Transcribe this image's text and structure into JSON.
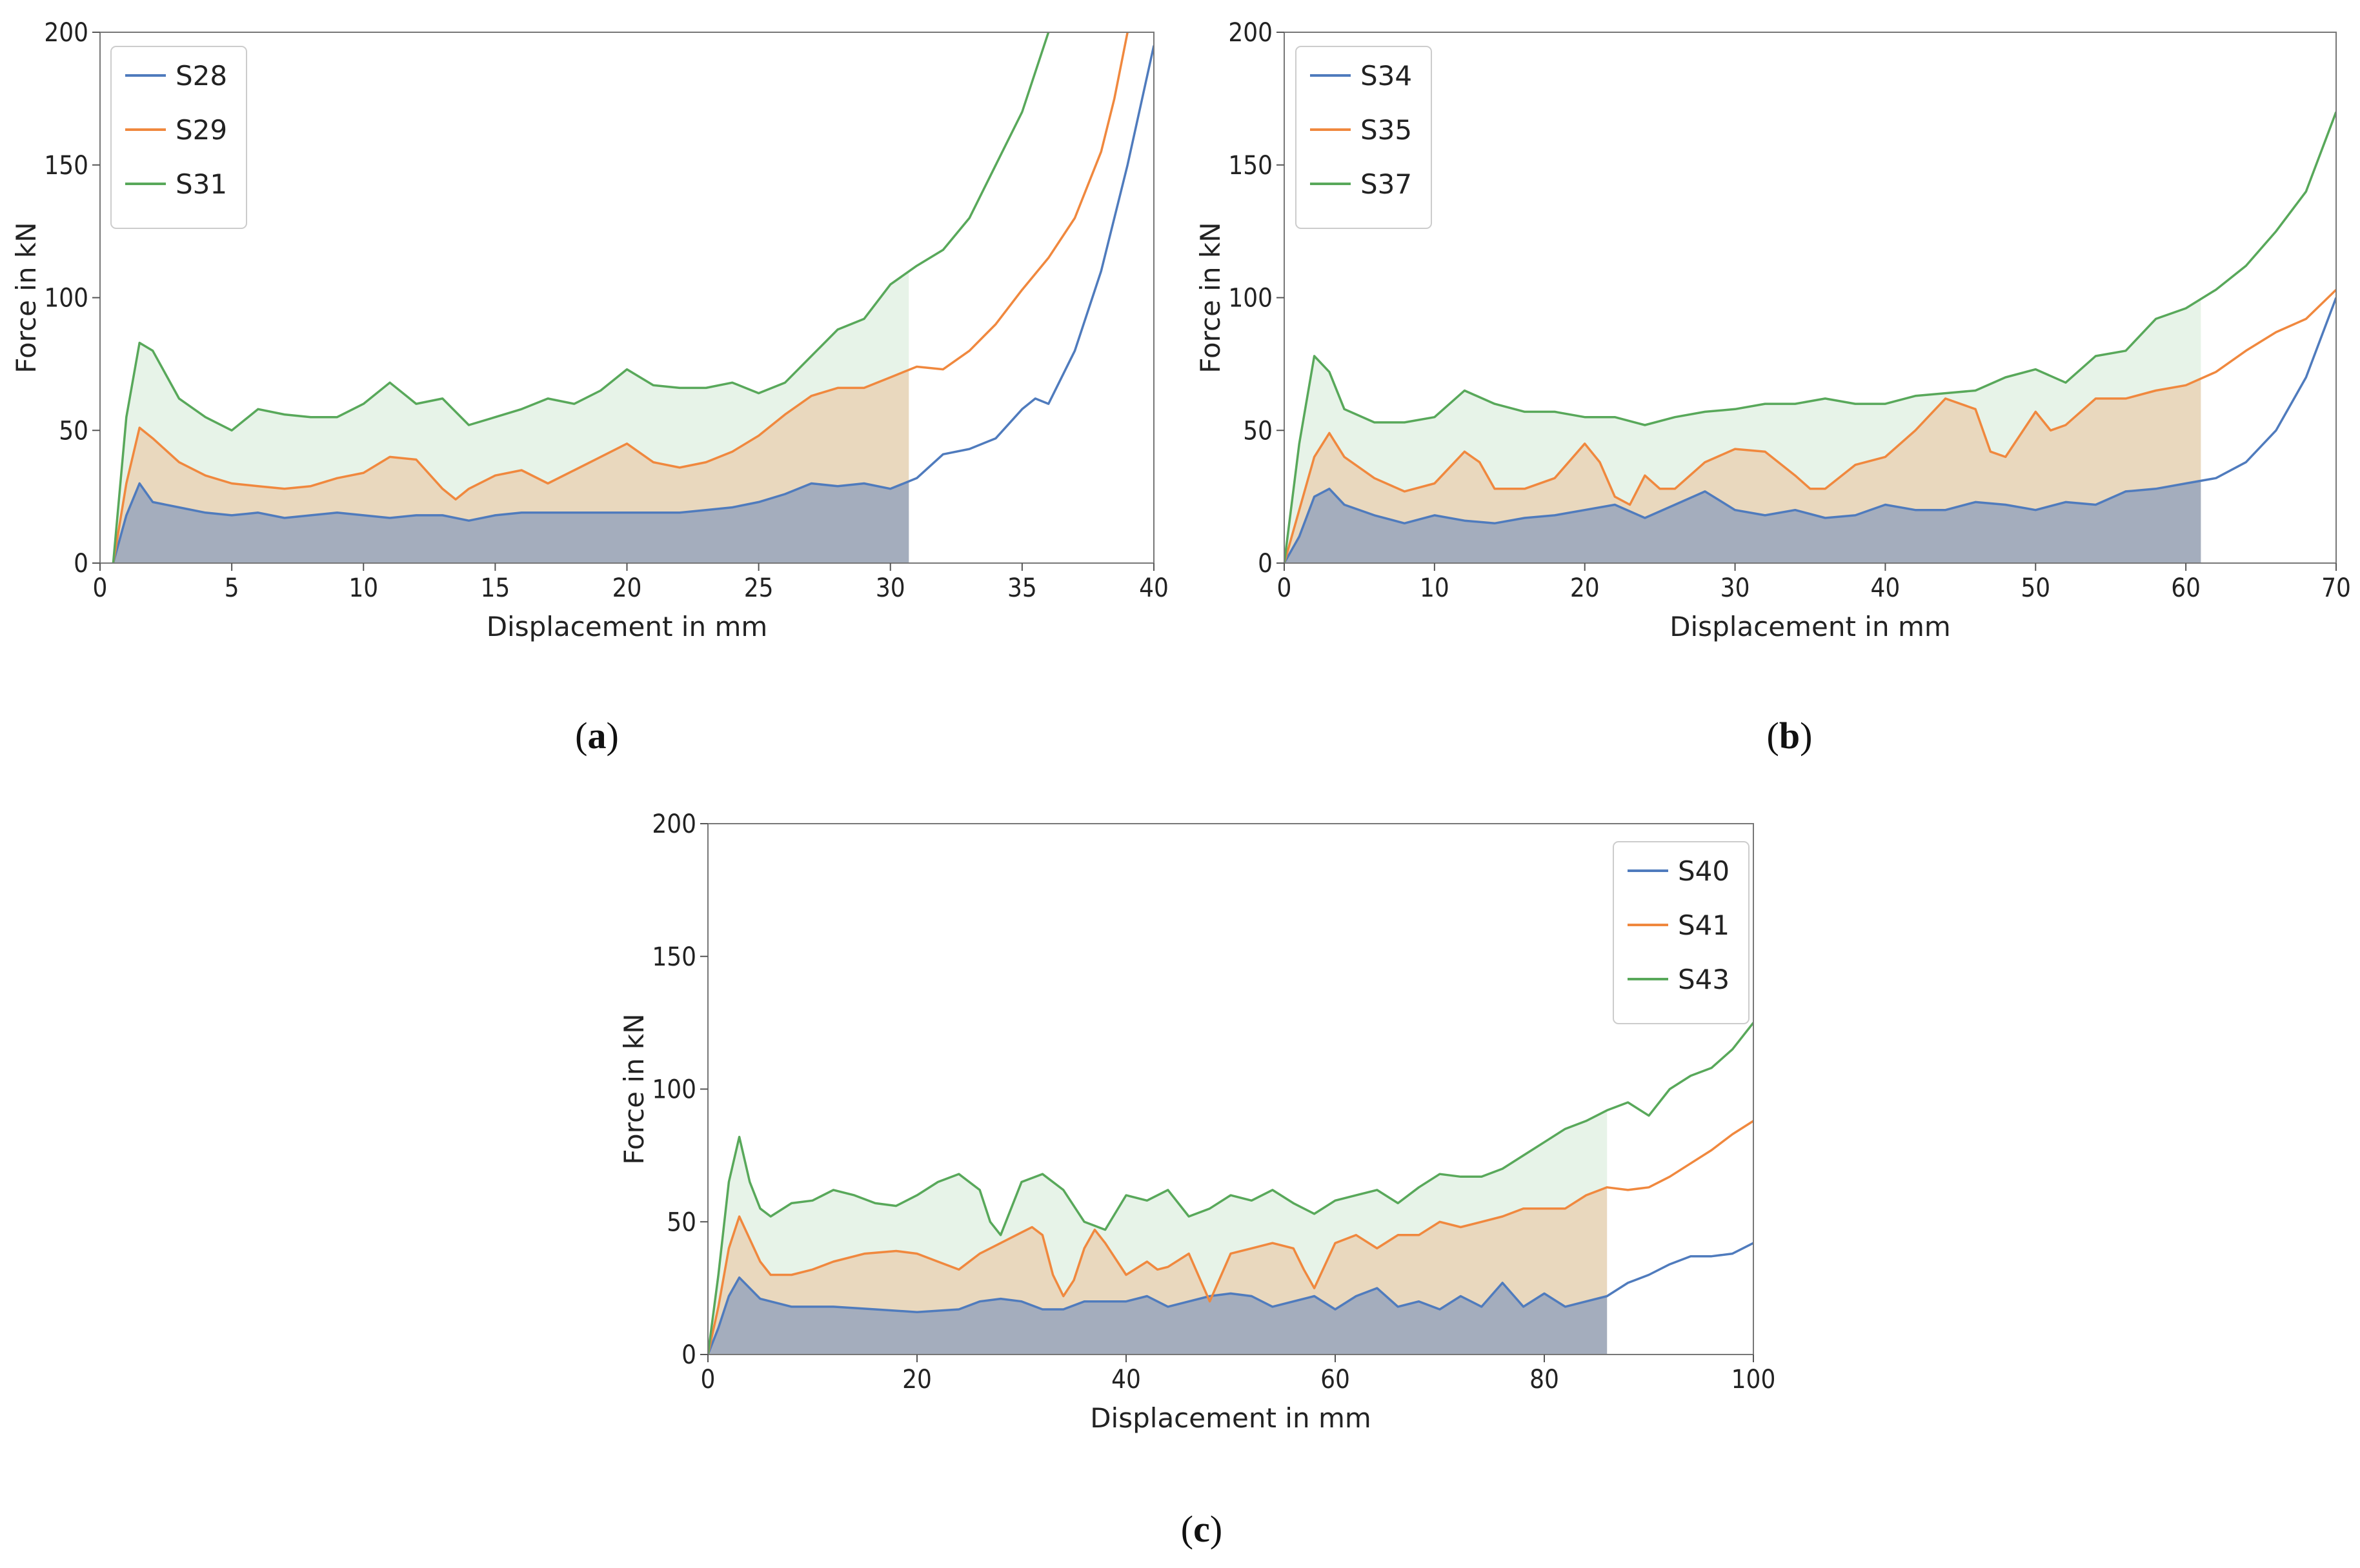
{
  "figure": {
    "colors": {
      "blue": "#4f7bbd",
      "orange": "#f0883e",
      "green": "#58a85a"
    }
  },
  "chart_data": [
    {
      "type": "line",
      "panel_label_text": "a",
      "xlabel": "Displacement in mm",
      "ylabel": "Force in kN",
      "xlim": [
        0,
        40
      ],
      "ylim": [
        0,
        200
      ],
      "xticks": [
        0,
        5,
        10,
        15,
        20,
        25,
        30,
        35,
        40
      ],
      "yticks": [
        0,
        50,
        100,
        150,
        200
      ],
      "legend_position": "top-left",
      "fill_to": 30.7,
      "series": [
        {
          "name": "S28",
          "color": "#4f7bbd",
          "x": [
            0.5,
            1,
            1.5,
            2,
            3,
            4,
            5,
            6,
            7,
            8,
            9,
            10,
            11,
            12,
            13,
            14,
            15,
            16,
            17,
            18,
            19,
            20,
            21,
            22,
            23,
            24,
            25,
            26,
            27,
            28,
            29,
            30,
            31,
            32,
            33,
            34,
            35,
            35.5,
            36,
            37,
            38,
            39,
            40
          ],
          "y": [
            0,
            18,
            30,
            23,
            21,
            19,
            18,
            19,
            17,
            18,
            19,
            18,
            17,
            18,
            18,
            16,
            18,
            19,
            19,
            19,
            19,
            19,
            19,
            19,
            20,
            21,
            23,
            26,
            30,
            29,
            30,
            28,
            32,
            41,
            43,
            47,
            58,
            62,
            60,
            80,
            110,
            150,
            195
          ]
        },
        {
          "name": "S29",
          "color": "#f0883e",
          "x": [
            0.5,
            1,
            1.5,
            2,
            3,
            4,
            5,
            6,
            7,
            8,
            9,
            10,
            11,
            12,
            13,
            13.5,
            14,
            15,
            16,
            17,
            18,
            19,
            20,
            21,
            22,
            23,
            24,
            25,
            26,
            27,
            28,
            29,
            30,
            31,
            32,
            33,
            34,
            35,
            36,
            37,
            38,
            38.5,
            39
          ],
          "y": [
            0,
            30,
            51,
            47,
            38,
            33,
            30,
            29,
            28,
            29,
            32,
            34,
            40,
            39,
            28,
            24,
            28,
            33,
            35,
            30,
            35,
            40,
            45,
            38,
            36,
            38,
            42,
            48,
            56,
            63,
            66,
            66,
            70,
            74,
            73,
            80,
            90,
            103,
            115,
            130,
            155,
            175,
            200
          ]
        },
        {
          "name": "S31",
          "color": "#58a85a",
          "x": [
            0.5,
            1,
            1.5,
            2,
            3,
            4,
            5,
            6,
            7,
            8,
            9,
            10,
            11,
            12,
            13,
            14,
            15,
            16,
            17,
            18,
            19,
            20,
            21,
            22,
            23,
            24,
            25,
            26,
            27,
            28,
            29,
            30,
            31,
            32,
            33,
            34,
            35,
            36
          ],
          "y": [
            0,
            55,
            83,
            80,
            62,
            55,
            50,
            58,
            56,
            55,
            55,
            60,
            68,
            60,
            62,
            52,
            55,
            58,
            62,
            60,
            65,
            73,
            67,
            66,
            66,
            68,
            64,
            68,
            78,
            88,
            92,
            105,
            112,
            118,
            130,
            150,
            170,
            200
          ]
        }
      ]
    },
    {
      "type": "line",
      "panel_label_text": "b",
      "xlabel": "Displacement in mm",
      "ylabel": "Force in kN",
      "xlim": [
        0,
        70
      ],
      "ylim": [
        0,
        200
      ],
      "xticks": [
        0,
        10,
        20,
        30,
        40,
        50,
        60,
        70
      ],
      "yticks": [
        0,
        50,
        100,
        150,
        200
      ],
      "legend_position": "top-left",
      "fill_to": 61,
      "series": [
        {
          "name": "S34",
          "color": "#4f7bbd",
          "x": [
            0,
            1,
            2,
            3,
            4,
            6,
            8,
            10,
            12,
            14,
            16,
            18,
            20,
            22,
            24,
            26,
            28,
            30,
            32,
            34,
            36,
            38,
            40,
            42,
            44,
            46,
            48,
            50,
            52,
            54,
            56,
            58,
            60,
            62,
            64,
            66,
            68,
            70
          ],
          "y": [
            0,
            10,
            25,
            28,
            22,
            18,
            15,
            18,
            16,
            15,
            17,
            18,
            20,
            22,
            17,
            22,
            27,
            20,
            18,
            20,
            17,
            18,
            22,
            20,
            20,
            23,
            22,
            20,
            23,
            22,
            27,
            28,
            30,
            32,
            38,
            50,
            70,
            100
          ]
        },
        {
          "name": "S35",
          "color": "#f0883e",
          "x": [
            0,
            1,
            2,
            3,
            4,
            6,
            8,
            10,
            12,
            13,
            14,
            16,
            18,
            20,
            21,
            22,
            23,
            24,
            25,
            26,
            28,
            30,
            32,
            34,
            35,
            36,
            38,
            40,
            42,
            44,
            46,
            47,
            48,
            50,
            51,
            52,
            54,
            56,
            58,
            60,
            62,
            64,
            66,
            68,
            70
          ],
          "y": [
            0,
            20,
            40,
            49,
            40,
            32,
            27,
            30,
            42,
            38,
            28,
            28,
            32,
            45,
            38,
            25,
            22,
            33,
            28,
            28,
            38,
            43,
            42,
            33,
            28,
            28,
            37,
            40,
            50,
            62,
            58,
            42,
            40,
            57,
            50,
            52,
            62,
            62,
            65,
            67,
            72,
            80,
            87,
            92,
            103
          ]
        },
        {
          "name": "S37",
          "color": "#58a85a",
          "x": [
            0,
            1,
            2,
            3,
            4,
            6,
            8,
            10,
            12,
            14,
            16,
            18,
            20,
            22,
            24,
            26,
            28,
            30,
            32,
            34,
            36,
            38,
            40,
            42,
            44,
            46,
            48,
            50,
            52,
            54,
            56,
            58,
            60,
            62,
            64,
            66,
            68,
            70
          ],
          "y": [
            0,
            45,
            78,
            72,
            58,
            53,
            53,
            55,
            65,
            60,
            57,
            57,
            55,
            55,
            52,
            55,
            57,
            58,
            60,
            60,
            62,
            60,
            60,
            63,
            64,
            65,
            70,
            73,
            68,
            78,
            80,
            92,
            96,
            103,
            112,
            125,
            140,
            170
          ]
        }
      ]
    },
    {
      "type": "line",
      "panel_label_text": "c",
      "xlabel": "Displacement in mm",
      "ylabel": "Force in kN",
      "xlim": [
        0,
        100
      ],
      "ylim": [
        0,
        200
      ],
      "xticks": [
        0,
        20,
        40,
        60,
        80,
        100
      ],
      "yticks": [
        0,
        50,
        100,
        150,
        200
      ],
      "legend_position": "top-right",
      "fill_to": 86,
      "series": [
        {
          "name": "S40",
          "color": "#4f7bbd",
          "x": [
            0,
            1,
            2,
            3,
            5,
            8,
            12,
            16,
            20,
            24,
            26,
            28,
            30,
            32,
            34,
            36,
            38,
            40,
            42,
            44,
            46,
            48,
            50,
            52,
            54,
            56,
            58,
            60,
            62,
            64,
            66,
            68,
            70,
            72,
            74,
            76,
            78,
            80,
            82,
            84,
            86,
            88,
            90,
            92,
            94,
            96,
            98,
            100
          ],
          "y": [
            0,
            10,
            22,
            29,
            21,
            18,
            18,
            17,
            16,
            17,
            20,
            21,
            20,
            17,
            17,
            20,
            20,
            20,
            22,
            18,
            20,
            22,
            23,
            22,
            18,
            20,
            22,
            17,
            22,
            25,
            18,
            20,
            17,
            22,
            18,
            27,
            18,
            23,
            18,
            20,
            22,
            27,
            30,
            34,
            37,
            37,
            38,
            42
          ]
        },
        {
          "name": "S41",
          "color": "#f0883e",
          "x": [
            0,
            1,
            2,
            3,
            5,
            6,
            8,
            10,
            12,
            15,
            18,
            20,
            22,
            24,
            26,
            28,
            30,
            31,
            32,
            33,
            34,
            35,
            36,
            37,
            38,
            40,
            42,
            43,
            44,
            46,
            48,
            50,
            52,
            54,
            56,
            57,
            58,
            60,
            62,
            64,
            66,
            68,
            70,
            72,
            74,
            76,
            78,
            80,
            82,
            84,
            86,
            88,
            90,
            92,
            94,
            96,
            98,
            100
          ],
          "y": [
            0,
            18,
            40,
            52,
            35,
            30,
            30,
            32,
            35,
            38,
            39,
            38,
            35,
            32,
            38,
            42,
            46,
            48,
            45,
            30,
            22,
            28,
            40,
            47,
            42,
            30,
            35,
            32,
            33,
            38,
            20,
            38,
            40,
            42,
            40,
            32,
            25,
            42,
            45,
            40,
            45,
            45,
            50,
            48,
            50,
            52,
            55,
            55,
            55,
            60,
            63,
            62,
            63,
            67,
            72,
            77,
            83,
            88
          ]
        },
        {
          "name": "S43",
          "color": "#58a85a",
          "x": [
            0,
            1,
            2,
            3,
            4,
            5,
            6,
            8,
            10,
            12,
            14,
            16,
            18,
            20,
            22,
            24,
            26,
            27,
            28,
            30,
            32,
            34,
            36,
            38,
            40,
            42,
            44,
            46,
            48,
            50,
            52,
            54,
            56,
            58,
            60,
            62,
            64,
            66,
            68,
            70,
            72,
            74,
            76,
            78,
            80,
            82,
            84,
            86,
            88,
            90,
            92,
            94,
            96,
            98,
            100
          ],
          "y": [
            0,
            30,
            65,
            82,
            65,
            55,
            52,
            57,
            58,
            62,
            60,
            57,
            56,
            60,
            65,
            68,
            62,
            50,
            45,
            65,
            68,
            62,
            50,
            47,
            60,
            58,
            62,
            52,
            55,
            60,
            58,
            62,
            57,
            53,
            58,
            60,
            62,
            57,
            63,
            68,
            67,
            67,
            70,
            75,
            80,
            85,
            88,
            92,
            95,
            90,
            100,
            105,
            108,
            115,
            125
          ]
        }
      ]
    }
  ]
}
